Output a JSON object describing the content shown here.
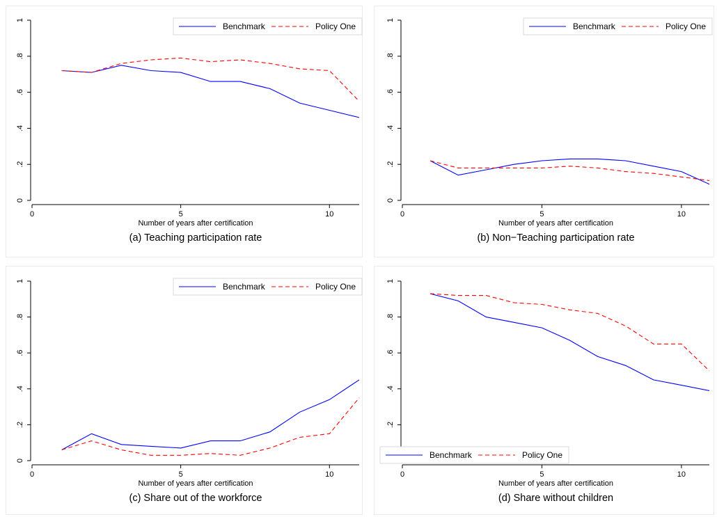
{
  "chart_data": [
    {
      "type": "line",
      "caption": "(a) Teaching participation rate",
      "xlabel": "Number of years after certification",
      "ylabel": "",
      "xlim": [
        0,
        11
      ],
      "ylim": [
        0,
        1
      ],
      "x_ticks": [
        0,
        5,
        10
      ],
      "y_ticks": [
        0,
        0.2,
        0.4,
        0.6,
        0.8,
        1
      ],
      "y_tick_labels": [
        "0",
        ".2",
        ".4",
        ".6",
        ".8",
        "1"
      ],
      "legend_position": "top-right",
      "x": [
        1,
        2,
        3,
        4,
        5,
        6,
        7,
        8,
        9,
        10,
        11
      ],
      "series": [
        {
          "name": "Benchmark",
          "color": "#0000ff",
          "dash": "solid",
          "values": [
            0.72,
            0.71,
            0.75,
            0.72,
            0.71,
            0.66,
            0.66,
            0.62,
            0.54,
            0.5,
            0.46
          ]
        },
        {
          "name": "Policy One",
          "color": "#ff0000",
          "dash": "dashed",
          "values": [
            0.72,
            0.71,
            0.76,
            0.78,
            0.79,
            0.77,
            0.78,
            0.76,
            0.73,
            0.72,
            0.55
          ]
        }
      ]
    },
    {
      "type": "line",
      "caption": "(b) Non−Teaching participation rate",
      "xlabel": "Number of years after certification",
      "ylabel": "",
      "xlim": [
        0,
        11
      ],
      "ylim": [
        0,
        1
      ],
      "x_ticks": [
        0,
        5,
        10
      ],
      "y_ticks": [
        0,
        0.2,
        0.4,
        0.6,
        0.8,
        1
      ],
      "y_tick_labels": [
        "0",
        ".2",
        ".4",
        ".6",
        ".8",
        "1"
      ],
      "legend_position": "top-right",
      "x": [
        1,
        2,
        3,
        4,
        5,
        6,
        7,
        8,
        9,
        10,
        11
      ],
      "series": [
        {
          "name": "Benchmark",
          "color": "#0000ff",
          "dash": "solid",
          "values": [
            0.22,
            0.14,
            0.17,
            0.2,
            0.22,
            0.23,
            0.23,
            0.22,
            0.19,
            0.16,
            0.09
          ]
        },
        {
          "name": "Policy One",
          "color": "#ff0000",
          "dash": "dashed",
          "values": [
            0.22,
            0.18,
            0.18,
            0.18,
            0.18,
            0.19,
            0.18,
            0.16,
            0.15,
            0.13,
            0.11
          ]
        }
      ]
    },
    {
      "type": "line",
      "caption": "(c) Share out of the workforce",
      "xlabel": "Number of years after certification",
      "ylabel": "",
      "xlim": [
        0,
        11
      ],
      "ylim": [
        0,
        1
      ],
      "x_ticks": [
        0,
        5,
        10
      ],
      "y_ticks": [
        0,
        0.2,
        0.4,
        0.6,
        0.8,
        1
      ],
      "y_tick_labels": [
        "0",
        ".2",
        ".4",
        ".6",
        ".8",
        "1"
      ],
      "legend_position": "top-right",
      "x": [
        1,
        2,
        3,
        4,
        5,
        6,
        7,
        8,
        9,
        10,
        11
      ],
      "series": [
        {
          "name": "Benchmark",
          "color": "#0000ff",
          "dash": "solid",
          "values": [
            0.06,
            0.15,
            0.09,
            0.08,
            0.07,
            0.11,
            0.11,
            0.16,
            0.27,
            0.34,
            0.45
          ]
        },
        {
          "name": "Policy One",
          "color": "#ff0000",
          "dash": "dashed",
          "values": [
            0.06,
            0.11,
            0.06,
            0.03,
            0.03,
            0.04,
            0.03,
            0.07,
            0.13,
            0.15,
            0.35
          ]
        }
      ]
    },
    {
      "type": "line",
      "caption": "(d) Share without children",
      "xlabel": "Number of years after certification",
      "ylabel": "",
      "xlim": [
        0,
        11
      ],
      "ylim": [
        0,
        1
      ],
      "x_ticks": [
        0,
        5,
        10
      ],
      "y_ticks": [
        0,
        0.2,
        0.4,
        0.6,
        0.8,
        1
      ],
      "y_tick_labels": [
        "0",
        ".2",
        ".4",
        ".6",
        ".8",
        "1"
      ],
      "legend_position": "bottom-left",
      "x": [
        1,
        2,
        3,
        4,
        5,
        6,
        7,
        8,
        9,
        10,
        11
      ],
      "series": [
        {
          "name": "Benchmark",
          "color": "#0000ff",
          "dash": "solid",
          "values": [
            0.93,
            0.89,
            0.8,
            0.77,
            0.74,
            0.67,
            0.58,
            0.53,
            0.45,
            0.42,
            0.39
          ]
        },
        {
          "name": "Policy One",
          "color": "#ff0000",
          "dash": "dashed",
          "values": [
            0.93,
            0.92,
            0.92,
            0.88,
            0.87,
            0.84,
            0.82,
            0.75,
            0.65,
            0.65,
            0.5
          ]
        }
      ]
    }
  ]
}
